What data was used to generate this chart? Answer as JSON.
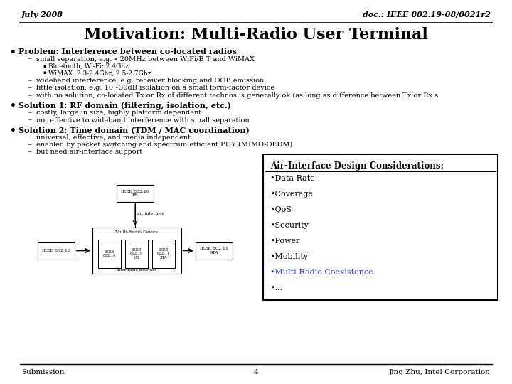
{
  "header_left": "July 2008",
  "header_right": "doc.: IEEE 802.19-08/0021r2",
  "title": "Motivation: Multi-Radio User Terminal",
  "bullet1_bold": "Problem: Interference between co-located radios",
  "bullet1_sub1": "small separation, e.g. <20MHz between WiFi/B T and WiMAX",
  "bullet1_sub1a": "Bluetooth, Wi-Fi: 2.4Ghz",
  "bullet1_sub1b": "WiMAX: 2.3-2.4Ghz, 2.5-2.7Ghz",
  "bullet1_sub2": "wideband interference, e.g. receiver blocking and OOB emission",
  "bullet1_sub3": "little isolation, e.g. 10~30dB isolation on a small form-factor device",
  "bullet1_sub4": "with no solution, co-located Tx or Rx of different technos is generally ok (as long as difference between Tx or Rx s",
  "bullet2_bold": "Solution 1: RF domain (filtering, isolation, etc.)",
  "bullet2_sub1": "costly, large in size, highly platform dependent",
  "bullet2_sub2": "not effective to wideband interference with small separation",
  "bullet3_bold": "Solution 2: Time domain (TDM / MAC coordination)",
  "bullet3_sub1": "universal, effective, and media independent",
  "bullet3_sub2": "enabled by packet switching and spectrum efficient PHY (MIMO-OFDM)",
  "bullet3_sub3": "but need air-interface support",
  "box_title": "Air-Interface Design Considerations:",
  "box_items": [
    "•Data Rate",
    "•Coverage",
    "•QoS",
    "•Security",
    "•Power",
    "•Mobility",
    "•Multi-Radio Coexistence",
    "•..."
  ],
  "box_item_colors": [
    "#000000",
    "#000000",
    "#000000",
    "#000000",
    "#000000",
    "#000000",
    "#4040cc",
    "#000000"
  ],
  "footer_left": "Submission",
  "footer_center": "4",
  "footer_right": "Jing Zhu, Intel Corporation",
  "bg_color": "#ffffff"
}
